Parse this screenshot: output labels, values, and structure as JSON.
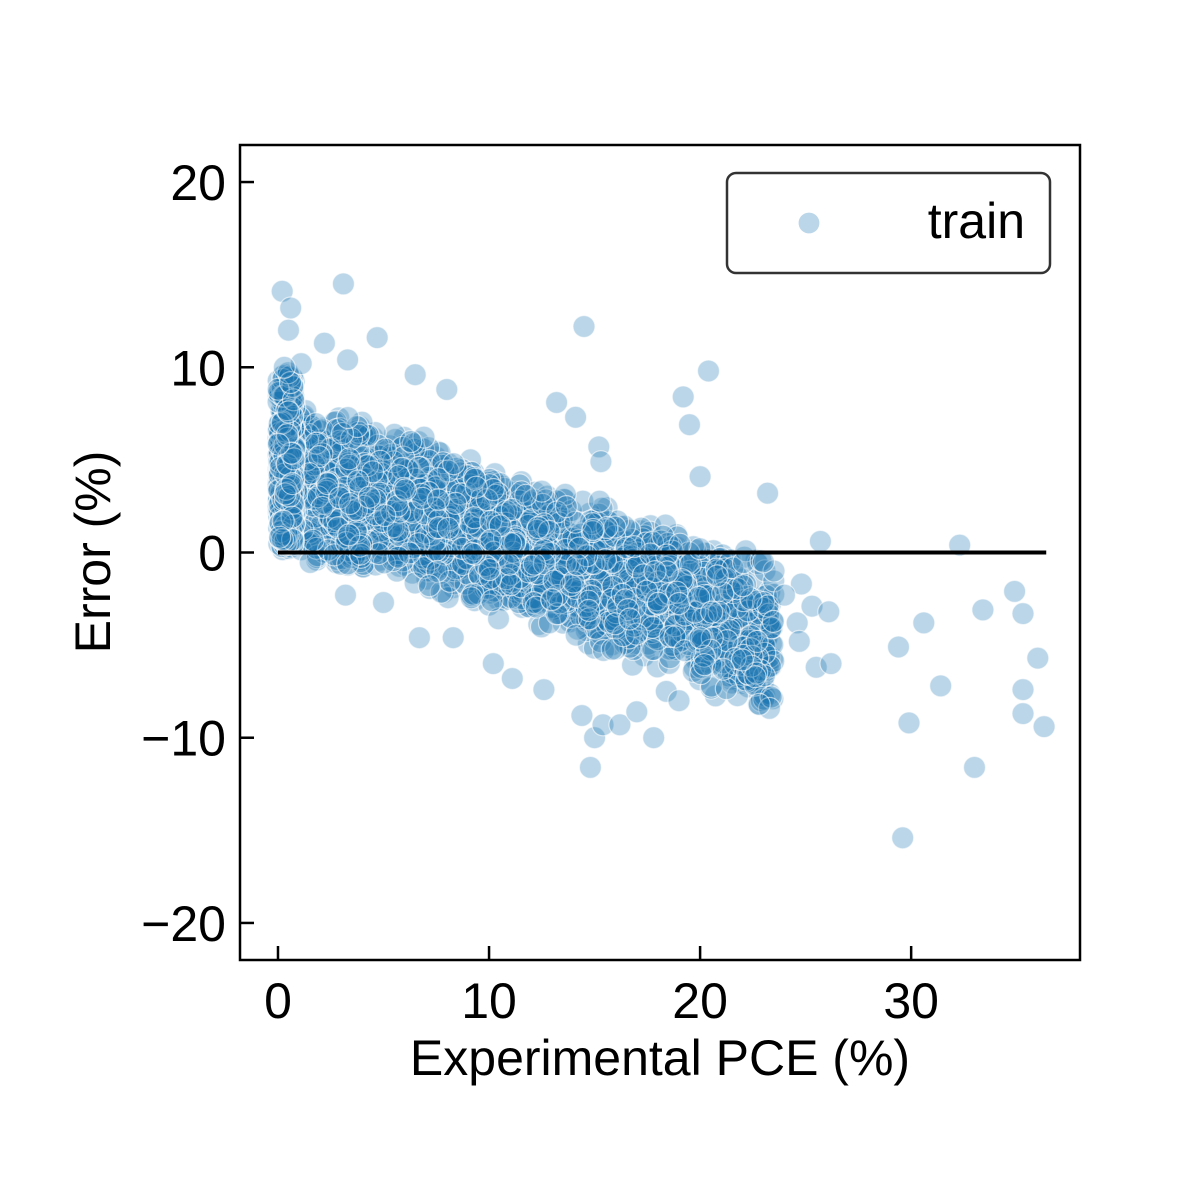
{
  "chart_data": {
    "type": "scatter",
    "xlabel": "Experimental PCE (%)",
    "ylabel": "Error (%)",
    "xlim": [
      -1.8,
      38
    ],
    "ylim": [
      -22,
      22
    ],
    "xticks": [
      0,
      10,
      20,
      30
    ],
    "yticks": [
      20,
      10,
      0,
      -10,
      -20
    ],
    "xtick_labels": [
      "0",
      "10",
      "20",
      "30"
    ],
    "ytick_labels": [
      "20",
      "10",
      "0",
      "−10",
      "−20"
    ],
    "legend": {
      "position": "top-right"
    },
    "reference_line": {
      "y": 0,
      "x_start": 0,
      "x_end": 36.4,
      "color": "#000000"
    },
    "series": [
      {
        "name": "train",
        "color": "#1f77b4",
        "alpha": 0.3,
        "points": [
          [
            0.2,
            14.1
          ],
          [
            0.6,
            13.2
          ],
          [
            3.1,
            14.5
          ],
          [
            0.5,
            12.0
          ],
          [
            4.7,
            11.6
          ],
          [
            2.2,
            11.3
          ],
          [
            14.5,
            12.2
          ],
          [
            3.3,
            10.4
          ],
          [
            1.1,
            10.2
          ],
          [
            0.3,
            10.0
          ],
          [
            20.4,
            9.8
          ],
          [
            6.5,
            9.6
          ],
          [
            19.2,
            8.4
          ],
          [
            8.0,
            8.8
          ],
          [
            19.5,
            6.9
          ],
          [
            13.2,
            8.1
          ],
          [
            14.1,
            7.3
          ],
          [
            15.2,
            5.7
          ],
          [
            15.3,
            4.9
          ],
          [
            20.0,
            4.1
          ],
          [
            23.2,
            3.2
          ],
          [
            25.7,
            0.6
          ],
          [
            32.3,
            0.4
          ],
          [
            24.8,
            -1.7
          ],
          [
            25.3,
            -2.9
          ],
          [
            26.1,
            -3.2
          ],
          [
            24.6,
            -3.8
          ],
          [
            24.7,
            -4.8
          ],
          [
            25.5,
            -6.2
          ],
          [
            26.2,
            -6.0
          ],
          [
            22.6,
            -6.7
          ],
          [
            22.8,
            -8.2
          ],
          [
            17.8,
            -10.0
          ],
          [
            15.0,
            -10.0
          ],
          [
            14.8,
            -11.6
          ],
          [
            14.4,
            -8.8
          ],
          [
            15.4,
            -9.3
          ],
          [
            16.2,
            -9.3
          ],
          [
            17.0,
            -8.6
          ],
          [
            18.4,
            -7.5
          ],
          [
            22.0,
            -5.8
          ],
          [
            22.7,
            -4.8
          ],
          [
            29.4,
            -5.1
          ],
          [
            30.6,
            -3.8
          ],
          [
            31.4,
            -7.2
          ],
          [
            29.9,
            -9.2
          ],
          [
            29.6,
            -15.4
          ],
          [
            33.0,
            -11.6
          ],
          [
            33.4,
            -3.1
          ],
          [
            34.9,
            -2.1
          ],
          [
            35.3,
            -3.3
          ],
          [
            35.3,
            -7.4
          ],
          [
            35.3,
            -8.7
          ],
          [
            36.0,
            -5.7
          ],
          [
            36.3,
            -9.4
          ],
          [
            21.1,
            -6.3
          ],
          [
            20.0,
            -4.6
          ],
          [
            23.5,
            -1.0
          ],
          [
            24.0,
            -2.3
          ],
          [
            23.0,
            -0.5
          ],
          [
            3.2,
            -2.3
          ],
          [
            5.0,
            -2.7
          ],
          [
            6.7,
            -4.6
          ],
          [
            8.3,
            -4.6
          ],
          [
            10.2,
            -6.0
          ],
          [
            11.1,
            -6.8
          ],
          [
            12.6,
            -7.4
          ],
          [
            19.0,
            -8.0
          ]
        ]
      }
    ]
  }
}
